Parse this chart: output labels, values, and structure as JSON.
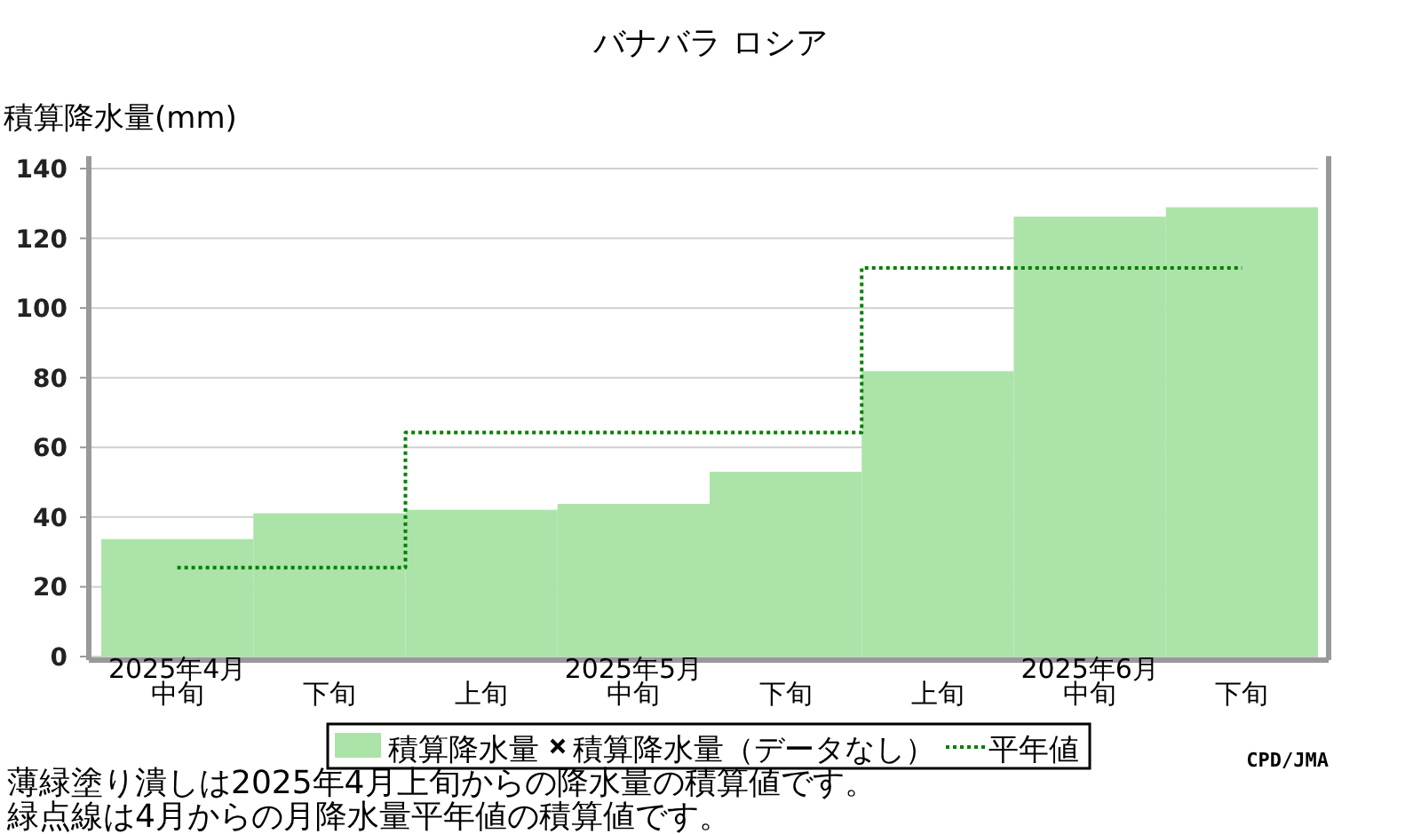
{
  "chart_data": {
    "type": "bar",
    "title": "バナバラ ロシア",
    "ylabel": "積算降水量(mm)",
    "categories": [
      "2025年4月中旬",
      "下旬",
      "上旬",
      "2025年5月中旬",
      "下旬",
      "上旬",
      "2025年6月中旬",
      "下旬"
    ],
    "series": [
      {
        "name": "積算降水量",
        "color": "#ace3a9",
        "values": [
          33.7,
          41.1,
          42.1,
          43.8,
          53.0,
          81.9,
          126.2,
          128.9
        ]
      },
      {
        "name": "積算降水量（データなし）",
        "type": "scatter",
        "marker": "cross",
        "color": "#000000",
        "values": [
          null,
          null,
          null,
          null,
          null,
          null,
          null,
          null
        ]
      },
      {
        "name": "平年値",
        "type": "step",
        "line_style": "dotted",
        "color": "#008000",
        "values": [
          25.5,
          25.5,
          64.3,
          64.3,
          64.3,
          111.5,
          111.5,
          111.5
        ]
      }
    ],
    "ylim": [
      0,
      140
    ],
    "yticks": [
      0,
      20,
      40,
      60,
      80,
      100,
      120,
      140
    ],
    "grid": "y",
    "legend": "bottom",
    "annotations": [
      "CPD/JMA",
      "薄緑塗り潰しは2025年4月上旬からの降水量の積算値です。",
      "緑点線は4月からの月降水量平年値の積算値です。"
    ]
  }
}
